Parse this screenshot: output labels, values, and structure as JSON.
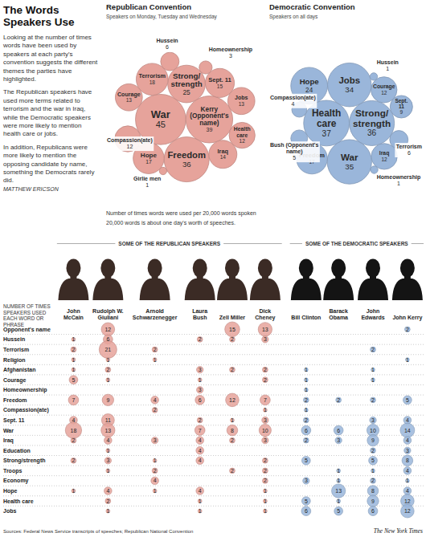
{
  "header": {
    "title": "The Words Speakers Use",
    "paragraphs": [
      "Looking at the number of times words have been used by speakers at each party's convention suggests the different themes the parties have highlighted.",
      "The Republican speakers have used more terms related to terrorism and the war in Iraq, while the Democratic speakers were more likely to mention health care or jobs.",
      "In addition, Republicans were more likely to mention the opposing candidate by name, something the Democrats rarely did."
    ],
    "byline": "MATTHEW ERICSON"
  },
  "chart_data": [
    {
      "type": "bubble",
      "title": "Republican Convention",
      "subtitle": "Speakers on Monday, Tuesday and Wednesday",
      "annotations": [
        "Number of times words were used per 20,000 words spoken",
        "20,000 words is about one day's worth of speeches."
      ],
      "categories": [
        "War",
        "Kerry (Opponent's name)",
        "Freedom",
        "Strong/strength",
        "Terrorism",
        "Hope",
        "Sept. 11",
        "Iraq",
        "Courage",
        "Jobs",
        "Compassion(ate)",
        "Health care",
        "Hussein",
        "Homeownership",
        "Girlie men"
      ],
      "values": [
        45,
        39,
        36,
        25,
        18,
        17,
        15,
        14,
        13,
        13,
        12,
        12,
        6,
        3,
        1
      ],
      "color": "#e6a39b",
      "data_labels": true
    },
    {
      "type": "bubble",
      "title": "Democratic Convention",
      "subtitle": "Speakers on all days",
      "categories": [
        "Health care",
        "Strong/strength",
        "War",
        "Jobs",
        "Hope",
        "Freedom",
        "Courage",
        "Iraq",
        "Sept. 11",
        "Terrorism",
        "Bush (Opponent's name)",
        "Compassion(ate)",
        "Hussein",
        "Homeownership"
      ],
      "values": [
        37,
        36,
        35,
        34,
        24,
        17,
        12,
        12,
        9,
        6,
        5,
        4,
        1,
        1
      ],
      "color": "#9ab6da",
      "data_labels": true
    }
  ],
  "table": {
    "title": "NUMBER OF TIMES SPEAKERS USED EACH WORD OR PHRASE",
    "groups": [
      {
        "label": "SOME OF THE REPUBLICAN SPEAKERS",
        "color": "#e6a39b",
        "speakers": [
          "John McCain",
          "Rudolph W. Giuliani",
          "Arnold Schwarzenegger",
          "Laura Bush",
          "Zell Miller",
          "Dick Cheney"
        ]
      },
      {
        "label": "SOME OF THE DEMOCRATIC SPEAKERS",
        "color": "#9ab6da",
        "speakers": [
          "Bill Clinton",
          "Barack Obama",
          "John Edwards",
          "John Kerry"
        ]
      }
    ],
    "rows": [
      {
        "label": "Opponent's name",
        "values": [
          null,
          12,
          null,
          null,
          15,
          13,
          null,
          null,
          null,
          2
        ]
      },
      {
        "label": "Hussein",
        "values": [
          1,
          6,
          null,
          2,
          2,
          3,
          null,
          null,
          null,
          null
        ]
      },
      {
        "label": "Terrorism",
        "values": [
          2,
          21,
          2,
          null,
          null,
          null,
          null,
          null,
          2,
          null
        ]
      },
      {
        "label": "Religion",
        "values": [
          1,
          1,
          1,
          null,
          null,
          null,
          null,
          null,
          null,
          1
        ]
      },
      {
        "label": "Afghanistan",
        "values": [
          1,
          2,
          null,
          3,
          2,
          2,
          1,
          null,
          1,
          null
        ]
      },
      {
        "label": "Courage",
        "values": [
          5,
          1,
          null,
          1,
          null,
          2,
          1,
          null,
          1,
          null
        ]
      },
      {
        "label": "Homeownership",
        "values": [
          null,
          null,
          null,
          3,
          null,
          null,
          1,
          null,
          null,
          null
        ]
      },
      {
        "label": "Freedom",
        "values": [
          7,
          9,
          4,
          6,
          12,
          7,
          2,
          2,
          2,
          5
        ]
      },
      {
        "label": "Compassion(ate)",
        "values": [
          null,
          null,
          2,
          null,
          null,
          1,
          1,
          null,
          null,
          null
        ]
      },
      {
        "label": "Sept. 11",
        "values": [
          4,
          11,
          null,
          2,
          1,
          3,
          2,
          null,
          3,
          4
        ]
      },
      {
        "label": "War",
        "values": [
          18,
          13,
          null,
          7,
          8,
          10,
          6,
          6,
          10,
          14
        ]
      },
      {
        "label": "Iraq",
        "values": [
          2,
          4,
          3,
          4,
          2,
          3,
          2,
          3,
          9,
          4
        ]
      },
      {
        "label": "Education",
        "values": [
          null,
          1,
          null,
          4,
          null,
          null,
          null,
          null,
          2,
          3
        ]
      },
      {
        "label": "Strong/strength",
        "values": [
          2,
          3,
          1,
          4,
          null,
          2,
          5,
          null,
          5,
          8
        ]
      },
      {
        "label": "Troops",
        "values": [
          null,
          1,
          2,
          null,
          2,
          2,
          null,
          1,
          1,
          4
        ]
      },
      {
        "label": "Economy",
        "values": [
          null,
          null,
          4,
          null,
          null,
          2,
          3,
          1,
          2,
          1
        ]
      },
      {
        "label": "Hope",
        "values": [
          1,
          4,
          1,
          4,
          null,
          1,
          null,
          13,
          8,
          4
        ]
      },
      {
        "label": "Health care",
        "values": [
          null,
          2,
          null,
          1,
          null,
          1,
          5,
          1,
          9,
          12
        ]
      },
      {
        "label": "Jobs",
        "values": [
          null,
          1,
          null,
          1,
          null,
          1,
          6,
          5,
          6,
          12
        ]
      }
    ]
  },
  "footer": {
    "sources": "Sources: Federal News Service transcripts of speeches; Republican National Convention",
    "credit": "The New York Times"
  }
}
